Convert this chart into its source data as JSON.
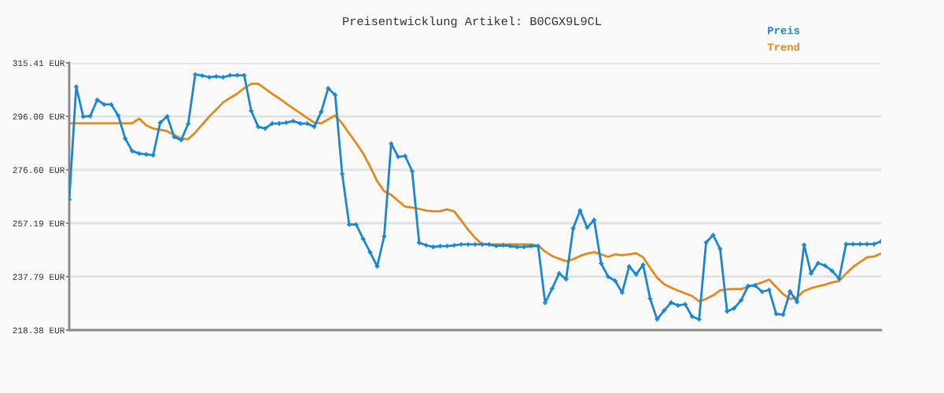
{
  "chart_data": {
    "type": "line",
    "title": "Preisentwicklung Artikel: B0CGX9L9CL",
    "categories": [
      null,
      null,
      null,
      null,
      null,
      null,
      null,
      null,
      null,
      null,
      null,
      null,
      null,
      null,
      null,
      null,
      null,
      null,
      null,
      null,
      null,
      null,
      null,
      null,
      null,
      null,
      null,
      null,
      null,
      null,
      null,
      null,
      null,
      null,
      null,
      null,
      null,
      null,
      null,
      null,
      null,
      null,
      null,
      null,
      null,
      null,
      null,
      null,
      null,
      null,
      null,
      null,
      null,
      null,
      null,
      null,
      null,
      null,
      null,
      null,
      null,
      null,
      null,
      null,
      null,
      null,
      null,
      null,
      null,
      null,
      null,
      null,
      null,
      null,
      null,
      null,
      null,
      null,
      null,
      null,
      null,
      null,
      null,
      null,
      null,
      null,
      null,
      null,
      null,
      null,
      null,
      null,
      null,
      null,
      null,
      null,
      null,
      null,
      null,
      null,
      null,
      null,
      null,
      null,
      null,
      null,
      null,
      null,
      null,
      null,
      null,
      null,
      null,
      null,
      null,
      null,
      null
    ],
    "series": [
      {
        "name": "Preis",
        "color": "#1a86d0",
        "marker": "cross",
        "values": [
          265.8,
          306.8,
          295.9,
          296.1,
          302.0,
          300.3,
          300.3,
          296.3,
          287.9,
          283.4,
          282.5,
          282.2,
          281.9,
          293.7,
          296.0,
          288.5,
          287.4,
          293.3,
          311.2,
          310.8,
          310.2,
          310.5,
          310.2,
          310.9,
          310.9,
          310.9,
          298.0,
          292.2,
          291.6,
          293.4,
          293.4,
          293.7,
          294.3,
          293.4,
          293.4,
          292.2,
          297.6,
          306.2,
          303.8,
          275.1,
          256.7,
          256.7,
          251.5,
          246.6,
          241.5,
          252.4,
          286.1,
          281.3,
          281.6,
          276.1,
          250.1,
          249.2,
          248.6,
          248.9,
          248.9,
          249.2,
          249.5,
          249.5,
          249.5,
          249.5,
          249.5,
          248.9,
          249.2,
          248.9,
          248.6,
          248.6,
          248.9,
          248.9,
          228.3,
          233.5,
          239.0,
          236.9,
          255.3,
          261.8,
          255.6,
          258.4,
          242.6,
          237.8,
          236.3,
          232.0,
          241.5,
          238.6,
          242.1,
          229.8,
          222.3,
          225.5,
          228.4,
          227.3,
          227.8,
          223.3,
          222.3,
          250.2,
          252.9,
          247.9,
          225.2,
          226.3,
          229.2,
          234.4,
          234.6,
          232.3,
          233.0,
          224.3,
          224.0,
          232.4,
          228.6,
          249.3,
          238.9,
          242.7,
          241.8,
          239.9,
          237.1,
          249.6,
          249.6,
          249.6,
          249.6,
          249.6,
          250.6
        ]
      },
      {
        "name": "Trend",
        "color": "#e0891c",
        "marker": "none",
        "values": [
          293.5,
          293.5,
          293.5,
          293.5,
          293.5,
          293.5,
          293.5,
          293.5,
          293.5,
          293.5,
          295.2,
          292.7,
          291.6,
          291.1,
          290.6,
          289.2,
          287.9,
          287.7,
          290.1,
          293.0,
          295.9,
          298.4,
          301.1,
          302.7,
          304.2,
          306.2,
          307.8,
          307.8,
          306.0,
          304.2,
          302.5,
          300.7,
          298.9,
          297.2,
          295.4,
          293.7,
          293.5,
          294.9,
          296.3,
          293.4,
          289.8,
          286.3,
          282.5,
          277.7,
          272.5,
          268.8,
          267.5,
          265.3,
          263.2,
          262.9,
          262.4,
          261.8,
          261.5,
          261.6,
          262.2,
          261.5,
          258.2,
          254.8,
          251.9,
          249.5,
          249.5,
          249.5,
          249.5,
          249.5,
          249.5,
          249.5,
          249.5,
          249.1,
          246.9,
          245.3,
          244.3,
          243.4,
          244.1,
          245.3,
          246.2,
          246.7,
          245.9,
          245.0,
          245.9,
          245.6,
          245.9,
          246.3,
          244.8,
          241.0,
          237.4,
          235.1,
          233.8,
          232.7,
          231.7,
          230.8,
          228.8,
          229.7,
          231.0,
          232.8,
          233.2,
          233.3,
          233.3,
          234.1,
          234.9,
          235.7,
          236.7,
          234.1,
          231.5,
          229.7,
          230.3,
          232.6,
          233.6,
          234.3,
          234.9,
          235.7,
          236.2,
          238.9,
          241.3,
          243.1,
          244.8,
          245.1,
          246.2
        ]
      }
    ],
    "ylim": [
      218.38,
      315.41
    ],
    "yticks": [
      {
        "value": 218.38,
        "label": "218.38 EUR"
      },
      {
        "value": 237.79,
        "label": "237.79 EUR"
      },
      {
        "value": 257.19,
        "label": "257.19 EUR"
      },
      {
        "value": 276.6,
        "label": "276.60 EUR"
      },
      {
        "value": 296.0,
        "label": "296.00 EUR"
      },
      {
        "value": 315.41,
        "label": "315.41 EUR"
      }
    ],
    "grid": "y",
    "legend": "top right",
    "tick_labels": "y",
    "line_style": "solid"
  }
}
